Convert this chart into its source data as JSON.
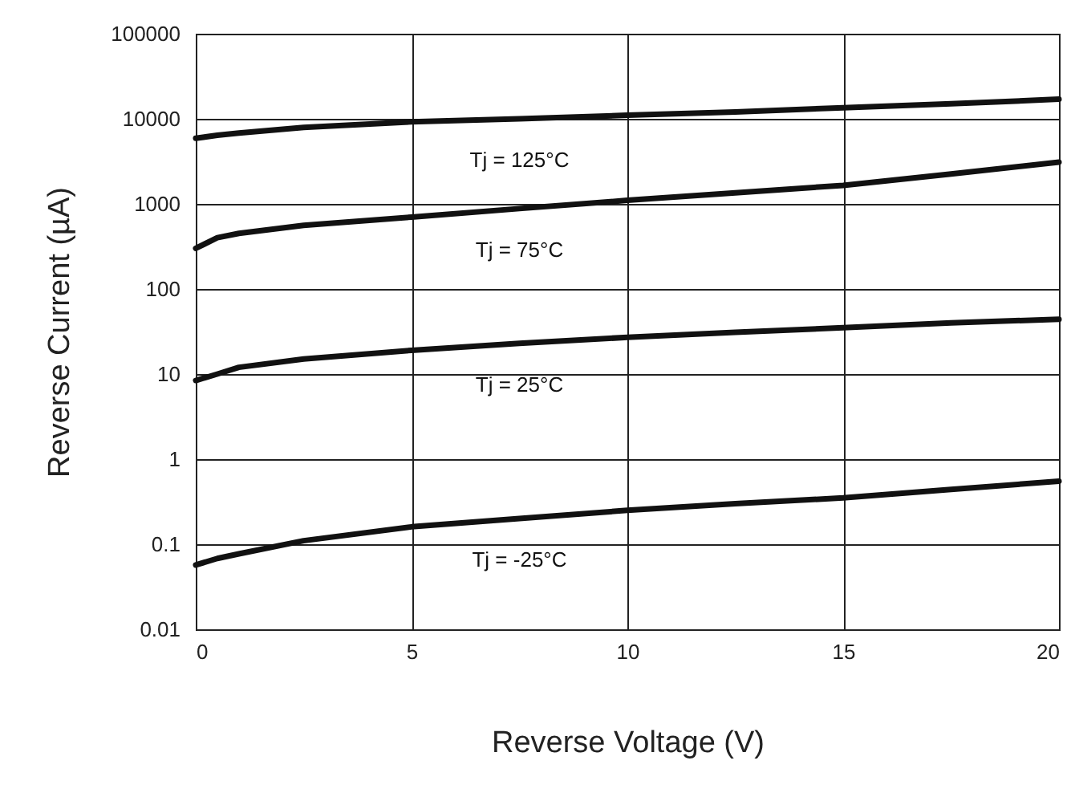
{
  "chart_data": {
    "type": "line",
    "xlabel": "Reverse Voltage (V)",
    "ylabel": "Reverse Current (µA)",
    "x": [
      0,
      0.5,
      1,
      2.5,
      5,
      7.5,
      10,
      12.5,
      15,
      17.5,
      20
    ],
    "series": [
      {
        "name": "Tj = 125°C",
        "color": "#111111",
        "values": [
          5900,
          6400,
          6800,
          7900,
          9200,
          10000,
          11000,
          12000,
          13500,
          15000,
          17000
        ]
      },
      {
        "name": "Tj = 75°C",
        "color": "#111111",
        "values": [
          300,
          400,
          450,
          560,
          700,
          880,
          1100,
          1350,
          1650,
          2250,
          3100
        ]
      },
      {
        "name": "Tj = 25°C",
        "color": "#111111",
        "values": [
          8.4,
          10,
          12,
          15,
          19,
          23,
          27,
          31,
          35,
          40,
          44
        ]
      },
      {
        "name": "Tj = -25°C",
        "color": "#111111",
        "values": [
          0.057,
          0.068,
          0.077,
          0.11,
          0.16,
          0.2,
          0.25,
          0.3,
          0.35,
          0.44,
          0.55
        ]
      }
    ],
    "log": "y",
    "xlim": [
      0,
      20
    ],
    "xticks": [
      0,
      5,
      10,
      15,
      20
    ],
    "ylim": [
      0.01,
      100000
    ],
    "yticks": [
      0.01,
      0.1,
      1,
      10,
      100,
      1000,
      10000,
      100000
    ],
    "grid": true,
    "legend": false,
    "marker": "none",
    "line_style": "solid"
  }
}
